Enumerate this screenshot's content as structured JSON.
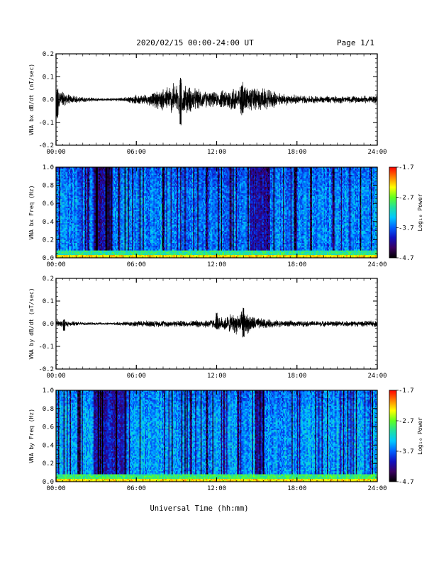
{
  "header": {
    "title": "2020/02/15  00:00-24:00 UT",
    "page": "Page 1/1"
  },
  "x_axis": {
    "label": "Universal Time (hh:mm)",
    "ticks": [
      "00:00",
      "06:00",
      "12:00",
      "18:00",
      "24:00"
    ],
    "range_hours": [
      0,
      24
    ]
  },
  "colorbar": {
    "label": "Log₁₀ Power",
    "ticks": [
      "-1.7",
      "-2.7",
      "-3.7",
      "-4.7"
    ],
    "range": [
      -4.7,
      -1.7
    ],
    "colormap": [
      "#000000",
      "#3a0060",
      "#1010c0",
      "#0060ff",
      "#00c8ff",
      "#20e0a0",
      "#60ff20",
      "#ffff00",
      "#ff8000",
      "#ff0000"
    ]
  },
  "chart_data": [
    {
      "type": "line",
      "ylabel": "VNA bx dB/dt (nT/sec)",
      "ylim": [
        -0.2,
        0.2
      ],
      "yticks": [
        "0.2",
        "0.1",
        "0.0",
        "-0.1",
        "-0.2"
      ],
      "color": "#000000",
      "x_hours": [
        0,
        0.5,
        1,
        2,
        3,
        4,
        5,
        6,
        7,
        8,
        9,
        10,
        11,
        12,
        13,
        14,
        15,
        16,
        17,
        18,
        19,
        20,
        21,
        22,
        23,
        24
      ],
      "amplitude": [
        0.06,
        0.045,
        0.022,
        0.012,
        0.008,
        0.006,
        0.01,
        0.022,
        0.028,
        0.055,
        0.085,
        0.065,
        0.042,
        0.035,
        0.06,
        0.07,
        0.06,
        0.045,
        0.028,
        0.022,
        0.018,
        0.018,
        0.018,
        0.016,
        0.018,
        0.02
      ],
      "events": [
        {
          "x": 0.1,
          "peak": 0.05,
          "trough": -0.08
        },
        {
          "x": 9.3,
          "peak": 0.1,
          "trough": -0.12
        },
        {
          "x": 13.9,
          "peak": 0.08,
          "trough": -0.07
        }
      ]
    },
    {
      "type": "heatmap",
      "ylabel": "VNA bx Freq (Hz)",
      "ylim": [
        0,
        1.0
      ],
      "yticks": [
        "1.0",
        "0.8",
        "0.6",
        "0.4",
        "0.2",
        "0.0"
      ],
      "z_range": [
        -4.7,
        -1.7
      ],
      "z_at_0hz": -2.4,
      "z_background": -3.6,
      "dark_intervals_hours": [
        [
          2.8,
          4.2
        ],
        [
          14.5,
          16.0
        ]
      ]
    },
    {
      "type": "line",
      "ylabel": "VNA by dB/dt (nT/sec)",
      "ylim": [
        -0.2,
        0.2
      ],
      "yticks": [
        "0.2",
        "0.1",
        "0.0",
        "-0.1",
        "-0.2"
      ],
      "color": "#000000",
      "x_hours": [
        0,
        0.5,
        1,
        2,
        3,
        4,
        5,
        6,
        7,
        8,
        9,
        10,
        11,
        12,
        13,
        14,
        15,
        16,
        17,
        18,
        19,
        20,
        21,
        22,
        23,
        24
      ],
      "amplitude": [
        0.02,
        0.016,
        0.012,
        0.008,
        0.006,
        0.005,
        0.01,
        0.016,
        0.016,
        0.016,
        0.016,
        0.016,
        0.02,
        0.025,
        0.045,
        0.06,
        0.03,
        0.02,
        0.016,
        0.014,
        0.014,
        0.014,
        0.014,
        0.014,
        0.014,
        0.016
      ],
      "events": [
        {
          "x": 0.6,
          "peak": 0.02,
          "trough": -0.04
        },
        {
          "x": 14.0,
          "peak": 0.07,
          "trough": -0.07
        },
        {
          "x": 12.0,
          "peak": 0.05,
          "trough": -0.03
        }
      ]
    },
    {
      "type": "heatmap",
      "ylabel": "VNA by Freq (Hz)",
      "ylim": [
        0,
        1.0
      ],
      "yticks": [
        "1.0",
        "0.8",
        "0.6",
        "0.4",
        "0.2",
        "0.0"
      ],
      "z_range": [
        -4.7,
        -1.7
      ],
      "z_at_0hz": -2.4,
      "z_background": -3.5,
      "dark_intervals_hours": [
        [
          2.8,
          5.3
        ],
        [
          15.0,
          15.6
        ]
      ]
    }
  ]
}
